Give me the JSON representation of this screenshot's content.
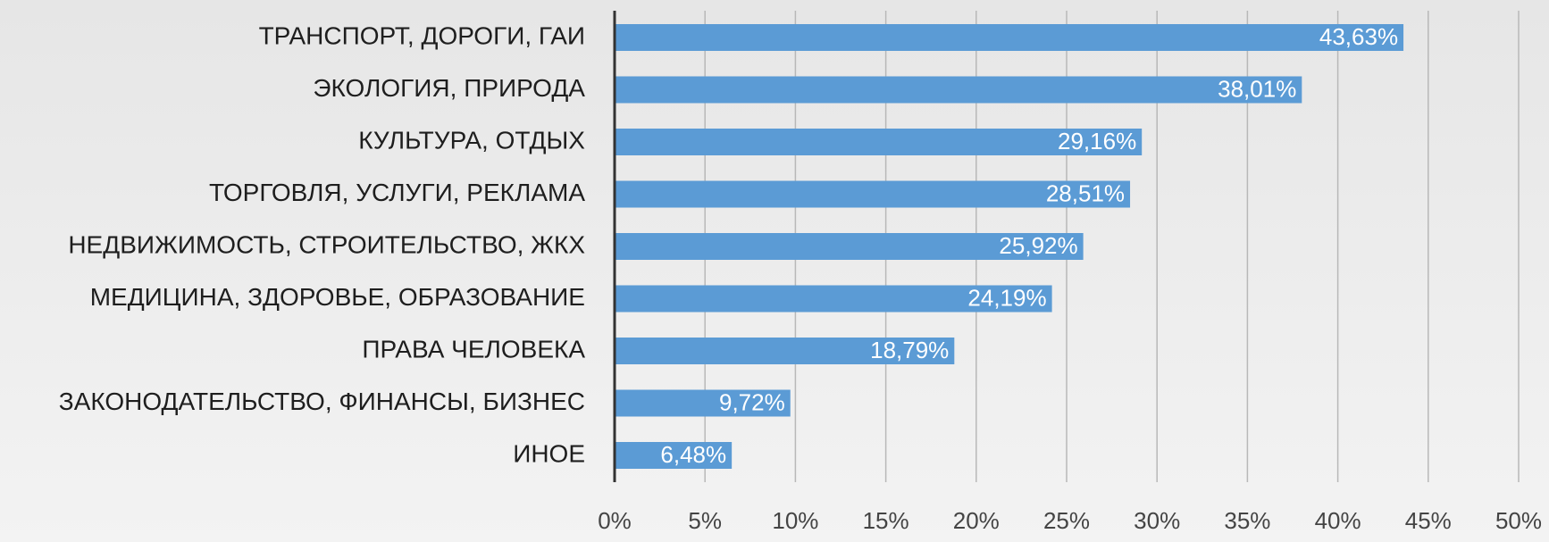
{
  "chart_data": {
    "type": "bar",
    "orientation": "horizontal",
    "categories": [
      "ТРАНСПОРТ, ДОРОГИ, ГАИ",
      "ЭКОЛОГИЯ, ПРИРОДА",
      "КУЛЬТУРА, ОТДЫХ",
      "ТОРГОВЛЯ, УСЛУГИ, РЕКЛАМА",
      "НЕДВИЖИМОСТЬ, СТРОИТЕЛЬСТВО, ЖКХ",
      "МЕДИЦИНА, ЗДОРОВЬЕ, ОБРАЗОВАНИЕ",
      "ПРАВА ЧЕЛОВЕКА",
      "ЗАКОНОДАТЕЛЬСТВО, ФИНАНСЫ, БИЗНЕС",
      "ИНОЕ"
    ],
    "values": [
      43.63,
      38.01,
      29.16,
      28.51,
      25.92,
      24.19,
      18.79,
      9.72,
      6.48
    ],
    "value_labels": [
      "43,63%",
      "38,01%",
      "29,16%",
      "28,51%",
      "25,92%",
      "24,19%",
      "18,79%",
      "9,72%",
      "6,48%"
    ],
    "color": "#5b9bd5",
    "xlim": [
      0,
      50
    ],
    "xticks": [
      {
        "value": 0,
        "label": "0%"
      },
      {
        "value": 5,
        "label": "5%"
      },
      {
        "value": 10,
        "label": "10%"
      },
      {
        "value": 15,
        "label": "15%"
      },
      {
        "value": 20,
        "label": "20%"
      },
      {
        "value": 25,
        "label": "25%"
      },
      {
        "value": 30,
        "label": "30%"
      },
      {
        "value": 35,
        "label": "35%"
      },
      {
        "value": 40,
        "label": "40%"
      },
      {
        "value": 45,
        "label": "45%"
      },
      {
        "value": 50,
        "label": "50%"
      }
    ],
    "grid": true
  }
}
